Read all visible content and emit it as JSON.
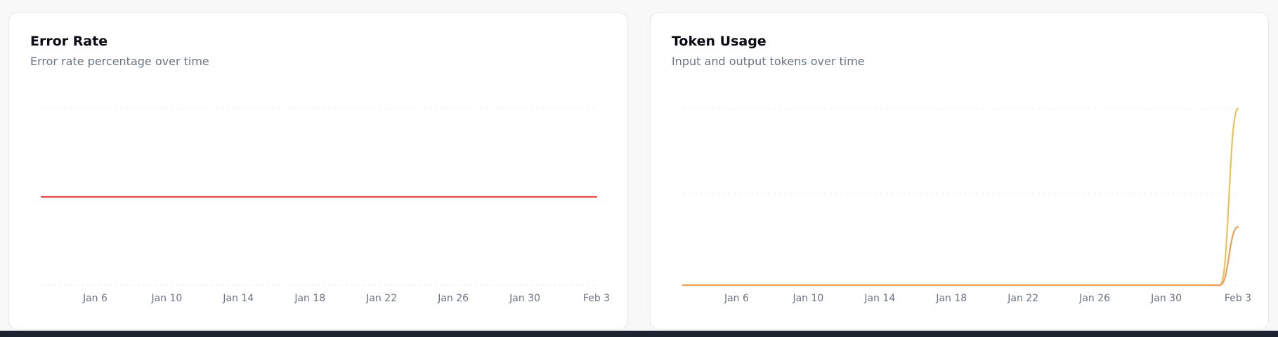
{
  "charts": {
    "error_rate": {
      "title": "Error Rate",
      "subtitle": "Error rate percentage over time"
    },
    "token_usage": {
      "title": "Token Usage",
      "subtitle": "Input and output tokens over time"
    }
  },
  "chart_data": [
    {
      "id": "error_rate",
      "type": "line",
      "title": "Error Rate",
      "subtitle": "Error rate percentage over time",
      "xlabel": "",
      "ylabel": "",
      "x_start": "2026-01-03",
      "x_end": "2026-02-03",
      "xticks": [
        "Jan 6",
        "Jan 10",
        "Jan 14",
        "Jan 18",
        "Jan 22",
        "Jan 26",
        "Jan 30",
        "Feb 3"
      ],
      "ylim": [
        0,
        2
      ],
      "grid": "horizontal-dashed",
      "series": [
        {
          "color": "#e5484d",
          "x": [
            "2026-01-03",
            "2026-02-03"
          ],
          "values": [
            1,
            1
          ]
        }
      ]
    },
    {
      "id": "token_usage",
      "type": "line",
      "title": "Token Usage",
      "subtitle": "Input and output tokens over time",
      "xlabel": "",
      "ylabel": "",
      "x_start": "2026-01-03",
      "x_end": "2026-02-03",
      "xticks": [
        "Jan 6",
        "Jan 10",
        "Jan 14",
        "Jan 18",
        "Jan 22",
        "Jan 26",
        "Jan 30",
        "Feb 3"
      ],
      "ylim": [
        0,
        100
      ],
      "grid": "horizontal-dashed",
      "gridlines": [
        52,
        100
      ],
      "series": [
        {
          "color": "#e8c35a",
          "x": [
            "2026-01-03",
            "2026-02-02",
            "2026-02-03"
          ],
          "values": [
            0,
            0,
            100
          ]
        },
        {
          "color": "#f0a05a",
          "x": [
            "2026-01-03",
            "2026-02-02",
            "2026-02-03"
          ],
          "values": [
            0,
            0,
            33
          ]
        }
      ]
    }
  ]
}
